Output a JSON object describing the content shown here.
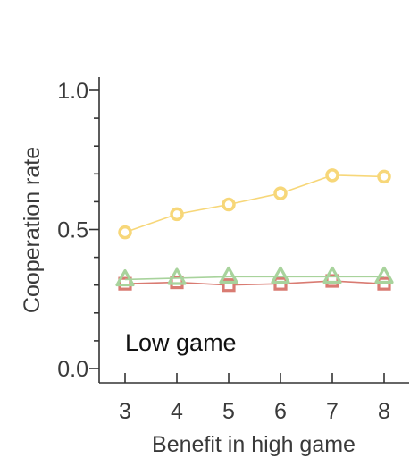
{
  "chart_data": {
    "type": "line",
    "title": "",
    "xlabel": "Benefit in high game",
    "ylabel": "Cooperation rate",
    "annotation": "Low game",
    "x": [
      3,
      4,
      5,
      6,
      7,
      8
    ],
    "xlim": [
      2.5,
      8.5
    ],
    "ylim": [
      -0.05,
      1.05
    ],
    "y_ticks_major": [
      0.0,
      0.5,
      1.0
    ],
    "y_tick_labels": [
      "0.0",
      "0.5",
      "1.0"
    ],
    "y_ticks_minor": [
      0.1,
      0.2,
      0.3,
      0.4,
      0.6,
      0.7,
      0.8,
      0.9
    ],
    "x_tick_labels": [
      "3",
      "4",
      "5",
      "6",
      "7",
      "8"
    ],
    "grid": false,
    "legend": "none",
    "series": [
      {
        "marker": "square",
        "color": "#d97b72",
        "values": [
          0.305,
          0.31,
          0.3,
          0.305,
          0.315,
          0.305
        ]
      },
      {
        "marker": "triangle",
        "color": "#a8d39c",
        "values": [
          0.32,
          0.325,
          0.33,
          0.33,
          0.33,
          0.33
        ]
      },
      {
        "marker": "circle",
        "color": "#f7d779",
        "values": [
          0.49,
          0.555,
          0.59,
          0.63,
          0.695,
          0.69
        ]
      }
    ]
  }
}
